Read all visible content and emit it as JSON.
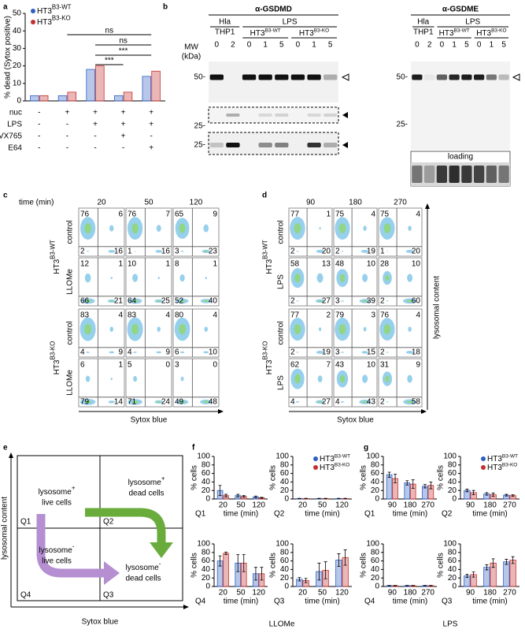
{
  "panel_labels": [
    "a",
    "b",
    "c",
    "d",
    "e",
    "f",
    "g"
  ],
  "chart_data": [
    {
      "type": "bar",
      "ylabel": "% dead (Sytox positive)",
      "ylim": [
        0,
        50
      ],
      "yticks": [
        0,
        10,
        20,
        30,
        40,
        50
      ],
      "legend": true,
      "series": [
        {
          "name": "HT3",
          "name_sup": "B3-WT",
          "color": "#2f5fc4",
          "values": [
            3,
            3,
            18,
            3,
            14
          ]
        },
        {
          "name": "HT3",
          "name_sup": "B3-KO",
          "color": "#c4302f",
          "values": [
            3,
            5,
            20,
            5,
            17
          ]
        }
      ],
      "conditions": [
        {
          "label": "nuc",
          "values": [
            "-",
            "+",
            "+",
            "+",
            "+"
          ]
        },
        {
          "label": "LPS",
          "values": [
            "-",
            "-",
            "+",
            "+",
            "+"
          ]
        },
        {
          "label": "VX765",
          "values": [
            "-",
            "-",
            "-",
            "+",
            "-"
          ]
        },
        {
          "label": "E64",
          "values": [
            "-",
            "-",
            "-",
            "-",
            "+"
          ]
        }
      ],
      "significance": [
        "ns",
        "ns",
        "***",
        "***"
      ]
    },
    {
      "type": "bar",
      "title": "Q1",
      "categories": [
        "20",
        "50",
        "120"
      ],
      "xlabel": "time (min)",
      "ylabel": "% cells",
      "ylim": [
        0,
        100
      ],
      "yticks": [
        0,
        20,
        40,
        60,
        80,
        100
      ],
      "series": [
        {
          "color": "#2f5fc4",
          "values": [
            20,
            8,
            5
          ],
          "errors": [
            12,
            3,
            2
          ]
        },
        {
          "color": "#c4302f",
          "values": [
            8,
            6,
            3
          ],
          "errors": [
            3,
            2,
            1
          ]
        }
      ]
    },
    {
      "type": "bar",
      "title": "Q2",
      "categories": [
        "20",
        "50",
        "120"
      ],
      "xlabel": "time (min)",
      "ylabel": "% cells",
      "ylim": [
        0,
        100
      ],
      "yticks": [
        0,
        20,
        40,
        60,
        80,
        100
      ],
      "legend": true,
      "series": [
        {
          "name": "HT3",
          "name_sup": "B3-WT",
          "color": "#2f5fc4",
          "values": [
            1,
            1,
            1
          ],
          "errors": [
            0.5,
            0.5,
            0.5
          ]
        },
        {
          "name": "HT3",
          "name_sup": "B3-KO",
          "color": "#c4302f",
          "values": [
            1,
            1,
            1
          ],
          "errors": [
            0.5,
            0.5,
            0.5
          ]
        }
      ]
    },
    {
      "type": "bar",
      "title": "Q4",
      "categories": [
        "20",
        "50",
        "120"
      ],
      "xlabel": "time (min)",
      "ylabel": "% cells",
      "ylim": [
        0,
        100
      ],
      "yticks": [
        0,
        20,
        40,
        60,
        80,
        100
      ],
      "series": [
        {
          "color": "#2f5fc4",
          "values": [
            60,
            55,
            30
          ],
          "errors": [
            12,
            20,
            15
          ]
        },
        {
          "color": "#c4302f",
          "values": [
            78,
            55,
            30
          ],
          "errors": [
            3,
            20,
            15
          ]
        }
      ]
    },
    {
      "type": "bar",
      "title": "Q3",
      "categories": [
        "20",
        "50",
        "120"
      ],
      "xlabel": "time (min)",
      "ylabel": "% cells",
      "ylim": [
        0,
        100
      ],
      "yticks": [
        0,
        20,
        40,
        60,
        80,
        100
      ],
      "series": [
        {
          "color": "#2f5fc4",
          "values": [
            17,
            35,
            62
          ],
          "errors": [
            4,
            20,
            15
          ]
        },
        {
          "color": "#c4302f",
          "values": [
            14,
            38,
            68
          ],
          "errors": [
            5,
            20,
            18
          ]
        }
      ]
    },
    {
      "type": "bar",
      "title": "Q1",
      "categories": [
        "90",
        "180",
        "270"
      ],
      "xlabel": "time (min)",
      "ylabel": "% cells",
      "ylim": [
        0,
        100
      ],
      "yticks": [
        0,
        20,
        40,
        60,
        80,
        100
      ],
      "series": [
        {
          "color": "#2f5fc4",
          "values": [
            57,
            38,
            30
          ],
          "errors": [
            6,
            5,
            4
          ]
        },
        {
          "color": "#c4302f",
          "values": [
            48,
            35,
            32
          ],
          "errors": [
            10,
            10,
            8
          ]
        }
      ]
    },
    {
      "type": "bar",
      "title": "Q2",
      "categories": [
        "90",
        "180",
        "270"
      ],
      "xlabel": "time (min)",
      "ylabel": "% cells",
      "ylim": [
        0,
        100
      ],
      "yticks": [
        0,
        20,
        40,
        60,
        80,
        100
      ],
      "legend": true,
      "series": [
        {
          "name": "HT3",
          "name_sup": "B3-WT",
          "color": "#2f5fc4",
          "values": [
            20,
            12,
            9
          ],
          "errors": [
            3,
            3,
            2
          ]
        },
        {
          "name": "HT3",
          "name_sup": "B3-KO",
          "color": "#c4302f",
          "values": [
            15,
            10,
            8
          ],
          "errors": [
            5,
            4,
            2
          ]
        }
      ]
    },
    {
      "type": "bar",
      "title": "Q4",
      "categories": [
        "90",
        "180",
        "270"
      ],
      "xlabel": "time (min)",
      "ylabel": "% cells",
      "ylim": [
        0,
        100
      ],
      "yticks": [
        0,
        20,
        40,
        60,
        80,
        100
      ],
      "series": [
        {
          "color": "#2f5fc4",
          "values": [
            2,
            2,
            2
          ],
          "errors": [
            0.5,
            0.5,
            0.5
          ]
        },
        {
          "color": "#c4302f",
          "values": [
            2,
            2,
            2
          ],
          "errors": [
            0.5,
            0.5,
            0.5
          ]
        }
      ]
    },
    {
      "type": "bar",
      "title": "Q3",
      "categories": [
        "90",
        "180",
        "270"
      ],
      "xlabel": "time (min)",
      "ylabel": "% cells",
      "ylim": [
        0,
        100
      ],
      "yticks": [
        0,
        20,
        40,
        60,
        80,
        100
      ],
      "series": [
        {
          "color": "#2f5fc4",
          "values": [
            25,
            45,
            58
          ],
          "errors": [
            4,
            6,
            6
          ]
        },
        {
          "color": "#c4302f",
          "values": [
            28,
            55,
            62
          ],
          "errors": [
            6,
            10,
            8
          ]
        }
      ]
    }
  ],
  "group_labels": [
    "LLOMe",
    "LPS"
  ],
  "blots": [
    {
      "title": "α-GSDMD",
      "lane_groups": [
        "Hla",
        "LPS"
      ],
      "cell_line": "THP1",
      "strains": [
        {
          "name": "HT3",
          "sup": "B3-WT"
        },
        {
          "name": "HT3",
          "sup": "B3-KO"
        }
      ],
      "lanes": [
        "0",
        "2",
        "0",
        "1",
        "5",
        "0",
        "1",
        "5"
      ],
      "mw_label": [
        "MW",
        "(kDa)"
      ],
      "markers": [
        "50-",
        "25-",
        "25-"
      ]
    },
    {
      "title": "α-GSDME",
      "lane_groups": [
        "Hla",
        "LPS"
      ],
      "cell_line": "THP1",
      "strains": [
        {
          "name": "HT3",
          "sup": "B3-WT"
        },
        {
          "name": "HT3",
          "sup": "B3-KO"
        }
      ],
      "lanes": [
        "0",
        "2",
        "0",
        "1",
        "5",
        "0",
        "1",
        "5"
      ],
      "markers": [
        "50-",
        "25-"
      ],
      "loading": "loading"
    }
  ],
  "flow": [
    {
      "time_label": "time (min)",
      "times": [
        "20",
        "50",
        "120"
      ],
      "x_label": "Sytox blue",
      "groups": [
        {
          "name": "HT3",
          "sup": "B3-WT",
          "rows": [
            {
              "label": "control",
              "plots": [
                [
                  76,
                  6,
                  2,
                  16
                ],
                [
                  76,
                  7,
                  1,
                  16
                ],
                [
                  65,
                  9,
                  3,
                  23
                ]
              ]
            },
            {
              "label": "LLOMe",
              "plots": [
                [
                  12,
                  1,
                  66,
                  21
                ],
                [
                  10,
                  1,
                  64,
                  25
                ],
                [
                  8,
                  1,
                  52,
                  40
                ]
              ]
            }
          ]
        },
        {
          "name": "HT3",
          "sup": "B3-KO",
          "rows": [
            {
              "label": "control",
              "plots": [
                [
                  83,
                  4,
                  4,
                  9
                ],
                [
                  83,
                  4,
                  4,
                  9
                ],
                [
                  80,
                  4,
                  6,
                  10
                ]
              ]
            },
            {
              "label": "LLOMe",
              "plots": [
                [
                  6,
                  1,
                  79,
                  14
                ],
                [
                  5,
                  0,
                  71,
                  24
                ],
                [
                  3,
                  0,
                  49,
                  48
                ]
              ]
            }
          ]
        }
      ]
    },
    {
      "times": [
        "90",
        "180",
        "270"
      ],
      "x_label": "Sytox blue",
      "y_label": "lysosomal content",
      "groups": [
        {
          "name": "HT3",
          "sup": "B3-WT",
          "rows": [
            {
              "label": "control",
              "plots": [
                [
                  77,
                  1,
                  2,
                  20
                ],
                [
                  75,
                  4,
                  2,
                  19
                ],
                [
                  75,
                  4,
                  1,
                  20
                ]
              ]
            },
            {
              "label": "LPS",
              "plots": [
                [
                  58,
                  13,
                  2,
                  27
                ],
                [
                  48,
                  10,
                  3,
                  39
                ],
                [
                  28,
                  10,
                  2,
                  60
                ]
              ]
            }
          ]
        },
        {
          "name": "HT3",
          "sup": "B3-KO",
          "rows": [
            {
              "label": "control",
              "plots": [
                [
                  77,
                  2,
                  2,
                  19
                ],
                [
                  79,
                  3,
                  3,
                  15
                ],
                [
                  76,
                  4,
                  2,
                  18
                ]
              ]
            },
            {
              "label": "LPS",
              "plots": [
                [
                  62,
                  7,
                  4,
                  27
                ],
                [
                  43,
                  10,
                  4,
                  43
                ],
                [
                  31,
                  9,
                  2,
                  58
                ]
              ]
            }
          ]
        }
      ]
    }
  ],
  "diagram": {
    "y_label": "lysosomal content",
    "x_label": "Sytox blue",
    "quadrants": [
      "Q1",
      "Q2",
      "Q4",
      "Q3"
    ],
    "nodes": [
      {
        "text": "lysosome",
        "sup": "+",
        "text2": "live cells"
      },
      {
        "text": "lysosome",
        "sup": "+",
        "text2": "dead cells"
      },
      {
        "text": "lysosome",
        "sup": "-",
        "text2": "live cells"
      },
      {
        "text": "lysosome",
        "sup": "-",
        "text2": "dead cells"
      }
    ]
  }
}
